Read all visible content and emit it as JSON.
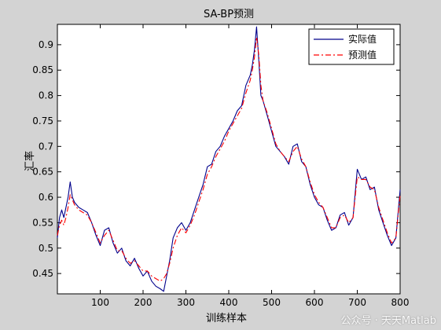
{
  "chart_data": {
    "type": "line",
    "title": "SA-BP预测",
    "xlabel": "训练样本",
    "ylabel": "汇率",
    "xlim": [
      0,
      800
    ],
    "ylim": [
      0.41,
      0.94
    ],
    "xticks": [
      100,
      200,
      300,
      400,
      500,
      600,
      700,
      800
    ],
    "yticks": [
      0.45,
      0.5,
      0.55,
      0.6,
      0.65,
      0.7,
      0.75,
      0.8,
      0.85,
      0.9
    ],
    "grid": false,
    "legend_position": "top-right",
    "series": [
      {
        "name": "实际值",
        "color": "#00008b",
        "style": "solid",
        "points": [
          [
            0,
            0.52
          ],
          [
            5,
            0.56
          ],
          [
            10,
            0.575
          ],
          [
            15,
            0.56
          ],
          [
            20,
            0.58
          ],
          [
            25,
            0.6
          ],
          [
            30,
            0.63
          ],
          [
            35,
            0.6
          ],
          [
            40,
            0.59
          ],
          [
            50,
            0.58
          ],
          [
            60,
            0.575
          ],
          [
            70,
            0.57
          ],
          [
            80,
            0.55
          ],
          [
            90,
            0.525
          ],
          [
            100,
            0.505
          ],
          [
            110,
            0.535
          ],
          [
            120,
            0.54
          ],
          [
            130,
            0.51
          ],
          [
            140,
            0.49
          ],
          [
            150,
            0.5
          ],
          [
            160,
            0.475
          ],
          [
            170,
            0.465
          ],
          [
            180,
            0.48
          ],
          [
            190,
            0.46
          ],
          [
            200,
            0.445
          ],
          [
            210,
            0.455
          ],
          [
            220,
            0.435
          ],
          [
            230,
            0.425
          ],
          [
            240,
            0.42
          ],
          [
            248,
            0.415
          ],
          [
            255,
            0.445
          ],
          [
            262,
            0.475
          ],
          [
            270,
            0.52
          ],
          [
            280,
            0.54
          ],
          [
            290,
            0.55
          ],
          [
            300,
            0.535
          ],
          [
            310,
            0.55
          ],
          [
            320,
            0.575
          ],
          [
            330,
            0.6
          ],
          [
            340,
            0.625
          ],
          [
            350,
            0.66
          ],
          [
            360,
            0.665
          ],
          [
            370,
            0.69
          ],
          [
            380,
            0.7
          ],
          [
            390,
            0.72
          ],
          [
            400,
            0.735
          ],
          [
            410,
            0.75
          ],
          [
            420,
            0.77
          ],
          [
            430,
            0.78
          ],
          [
            440,
            0.82
          ],
          [
            450,
            0.84
          ],
          [
            455,
            0.86
          ],
          [
            460,
            0.89
          ],
          [
            465,
            0.935
          ],
          [
            470,
            0.87
          ],
          [
            475,
            0.8
          ],
          [
            480,
            0.79
          ],
          [
            490,
            0.76
          ],
          [
            500,
            0.73
          ],
          [
            510,
            0.7
          ],
          [
            520,
            0.69
          ],
          [
            530,
            0.68
          ],
          [
            540,
            0.665
          ],
          [
            550,
            0.7
          ],
          [
            560,
            0.705
          ],
          [
            570,
            0.67
          ],
          [
            580,
            0.66
          ],
          [
            590,
            0.625
          ],
          [
            600,
            0.6
          ],
          [
            610,
            0.585
          ],
          [
            620,
            0.58
          ],
          [
            630,
            0.555
          ],
          [
            640,
            0.535
          ],
          [
            650,
            0.54
          ],
          [
            660,
            0.565
          ],
          [
            670,
            0.57
          ],
          [
            680,
            0.545
          ],
          [
            690,
            0.56
          ],
          [
            700,
            0.655
          ],
          [
            710,
            0.635
          ],
          [
            720,
            0.64
          ],
          [
            730,
            0.615
          ],
          [
            740,
            0.62
          ],
          [
            750,
            0.575
          ],
          [
            760,
            0.55
          ],
          [
            770,
            0.525
          ],
          [
            780,
            0.505
          ],
          [
            790,
            0.52
          ],
          [
            800,
            0.615
          ]
        ]
      },
      {
        "name": "预测值",
        "color": "#ff0000",
        "style": "dashdot",
        "points": [
          [
            0,
            0.525
          ],
          [
            5,
            0.545
          ],
          [
            10,
            0.555
          ],
          [
            15,
            0.545
          ],
          [
            20,
            0.56
          ],
          [
            25,
            0.58
          ],
          [
            30,
            0.605
          ],
          [
            35,
            0.595
          ],
          [
            40,
            0.585
          ],
          [
            50,
            0.575
          ],
          [
            60,
            0.57
          ],
          [
            70,
            0.565
          ],
          [
            80,
            0.55
          ],
          [
            90,
            0.53
          ],
          [
            100,
            0.51
          ],
          [
            110,
            0.525
          ],
          [
            120,
            0.535
          ],
          [
            130,
            0.515
          ],
          [
            140,
            0.495
          ],
          [
            150,
            0.495
          ],
          [
            160,
            0.48
          ],
          [
            170,
            0.47
          ],
          [
            180,
            0.475
          ],
          [
            190,
            0.465
          ],
          [
            200,
            0.455
          ],
          [
            210,
            0.455
          ],
          [
            220,
            0.445
          ],
          [
            230,
            0.44
          ],
          [
            240,
            0.435
          ],
          [
            248,
            0.44
          ],
          [
            255,
            0.45
          ],
          [
            262,
            0.47
          ],
          [
            270,
            0.5
          ],
          [
            280,
            0.525
          ],
          [
            290,
            0.54
          ],
          [
            300,
            0.53
          ],
          [
            310,
            0.545
          ],
          [
            320,
            0.565
          ],
          [
            330,
            0.59
          ],
          [
            340,
            0.615
          ],
          [
            350,
            0.645
          ],
          [
            360,
            0.66
          ],
          [
            370,
            0.68
          ],
          [
            380,
            0.695
          ],
          [
            390,
            0.71
          ],
          [
            400,
            0.73
          ],
          [
            410,
            0.745
          ],
          [
            420,
            0.76
          ],
          [
            430,
            0.775
          ],
          [
            440,
            0.805
          ],
          [
            450,
            0.83
          ],
          [
            455,
            0.85
          ],
          [
            460,
            0.875
          ],
          [
            465,
            0.915
          ],
          [
            470,
            0.88
          ],
          [
            475,
            0.82
          ],
          [
            480,
            0.79
          ],
          [
            490,
            0.765
          ],
          [
            500,
            0.735
          ],
          [
            510,
            0.705
          ],
          [
            520,
            0.69
          ],
          [
            530,
            0.68
          ],
          [
            540,
            0.67
          ],
          [
            550,
            0.69
          ],
          [
            560,
            0.7
          ],
          [
            570,
            0.675
          ],
          [
            580,
            0.66
          ],
          [
            590,
            0.63
          ],
          [
            600,
            0.605
          ],
          [
            610,
            0.59
          ],
          [
            620,
            0.58
          ],
          [
            630,
            0.56
          ],
          [
            640,
            0.54
          ],
          [
            650,
            0.54
          ],
          [
            660,
            0.56
          ],
          [
            670,
            0.565
          ],
          [
            680,
            0.55
          ],
          [
            690,
            0.56
          ],
          [
            700,
            0.64
          ],
          [
            710,
            0.635
          ],
          [
            720,
            0.635
          ],
          [
            730,
            0.62
          ],
          [
            740,
            0.615
          ],
          [
            750,
            0.58
          ],
          [
            760,
            0.555
          ],
          [
            770,
            0.53
          ],
          [
            780,
            0.51
          ],
          [
            790,
            0.52
          ],
          [
            800,
            0.605
          ]
        ]
      }
    ]
  },
  "watermark": "公众号 · 天天Matlab"
}
